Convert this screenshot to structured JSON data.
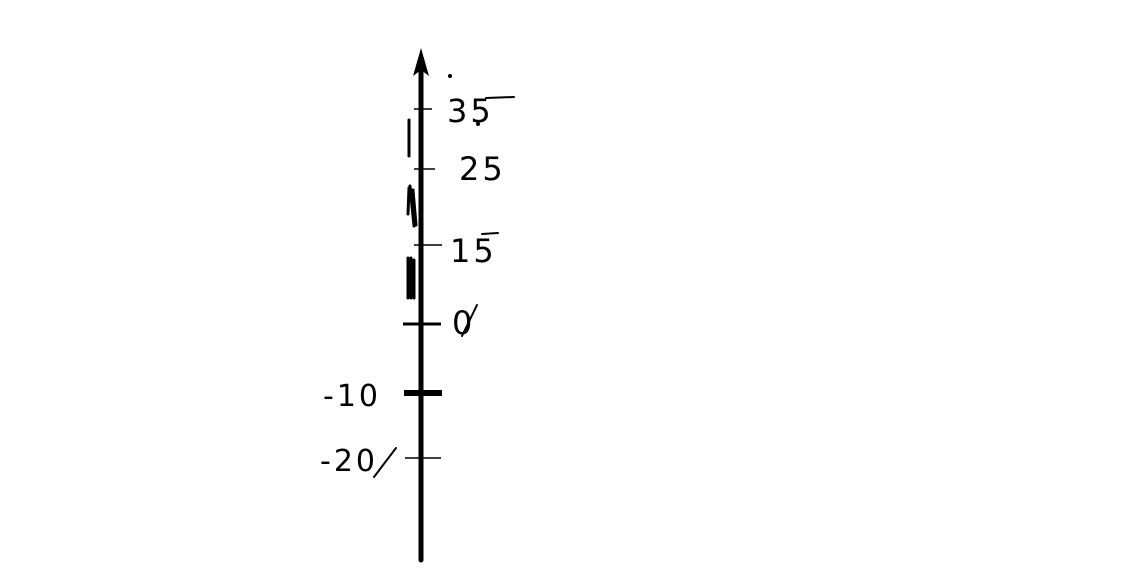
{
  "diagram": {
    "type": "vertical-number-line",
    "stroke_color": "#000000",
    "background": "#ffffff",
    "labels": [
      "35",
      "25",
      "15",
      "0",
      "-10",
      "-20"
    ]
  }
}
